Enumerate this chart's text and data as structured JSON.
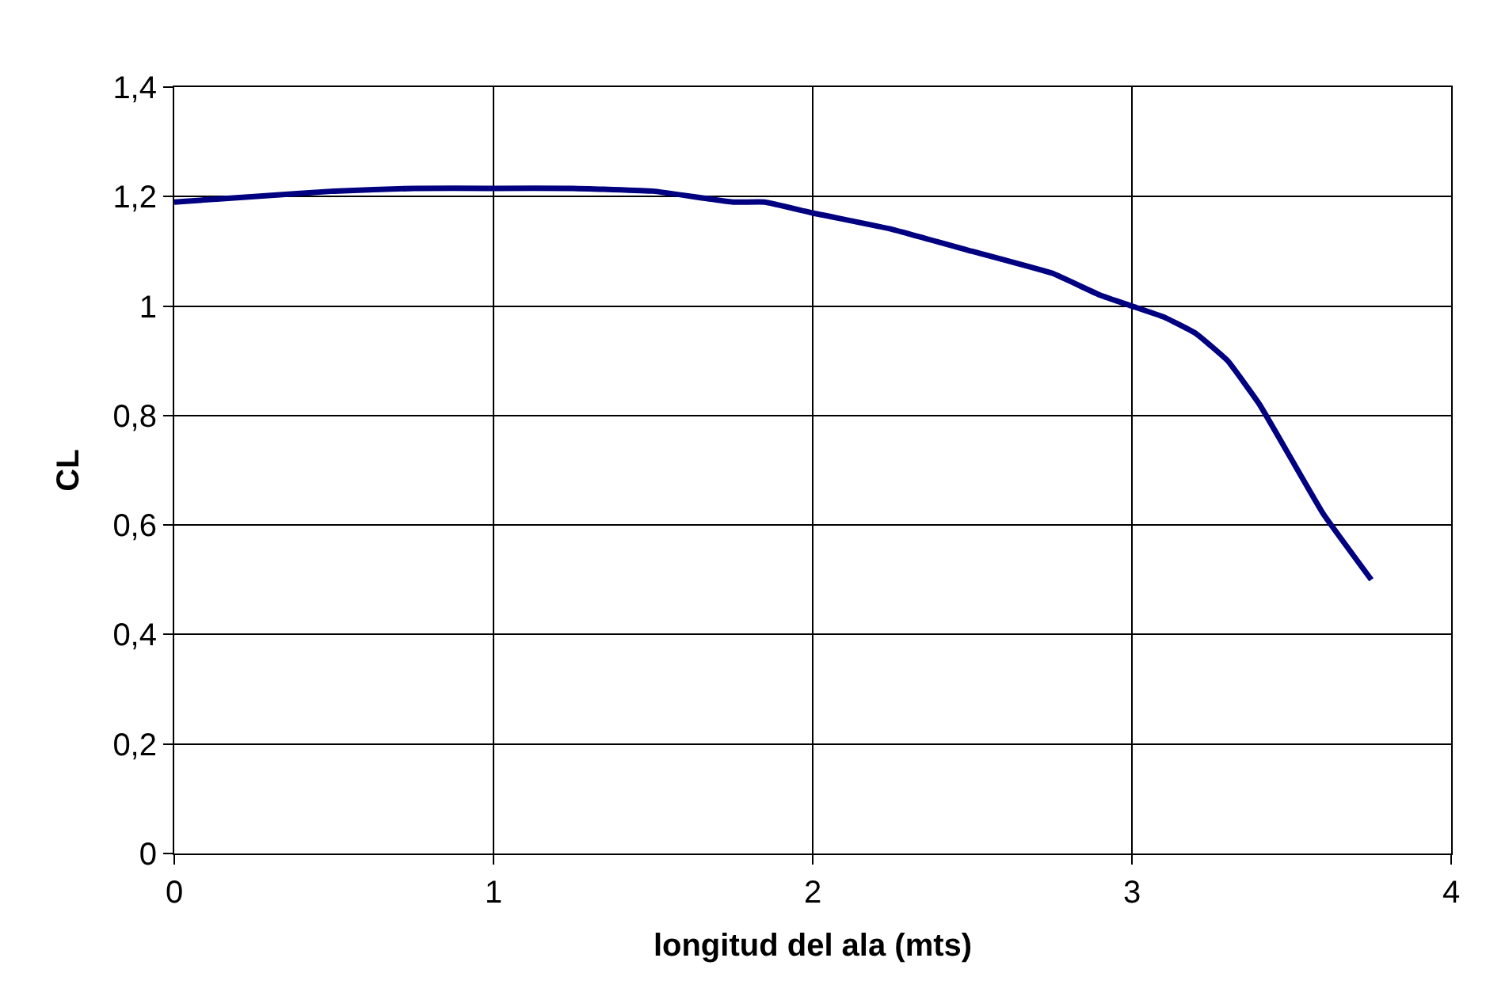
{
  "chart_data": {
    "type": "line",
    "xlabel": "longitud del ala (mts)",
    "ylabel": "CL",
    "x": [
      0,
      0.25,
      0.5,
      0.75,
      1,
      1.25,
      1.5,
      1.75,
      1.85,
      2,
      2.25,
      2.5,
      2.75,
      2.9,
      3,
      3.1,
      3.2,
      3.3,
      3.4,
      3.5,
      3.6,
      3.75
    ],
    "series": [
      {
        "color": "#000080",
        "values": [
          1.19,
          1.2,
          1.21,
          1.215,
          1.215,
          1.215,
          1.21,
          1.19,
          1.19,
          1.17,
          1.14,
          1.1,
          1.06,
          1.02,
          1.0,
          0.98,
          0.95,
          0.9,
          0.82,
          0.72,
          0.62,
          0.5
        ]
      }
    ],
    "xlim": [
      0,
      4
    ],
    "xticks": [
      0,
      1,
      2,
      3,
      4
    ],
    "ylim": [
      0,
      1.4
    ],
    "yticks": [
      0,
      {
        "value": 0.2,
        "label": "0,2"
      },
      {
        "value": 0.4,
        "label": "0,4"
      },
      {
        "value": 0.6,
        "label": "0,6"
      },
      {
        "value": 0.8,
        "label": "0,8"
      },
      1,
      {
        "value": 1.2,
        "label": "1,2"
      },
      {
        "value": 1.4,
        "label": "1,4"
      }
    ],
    "grid": true,
    "legend": false,
    "marker": "none",
    "line_style": "solid"
  }
}
